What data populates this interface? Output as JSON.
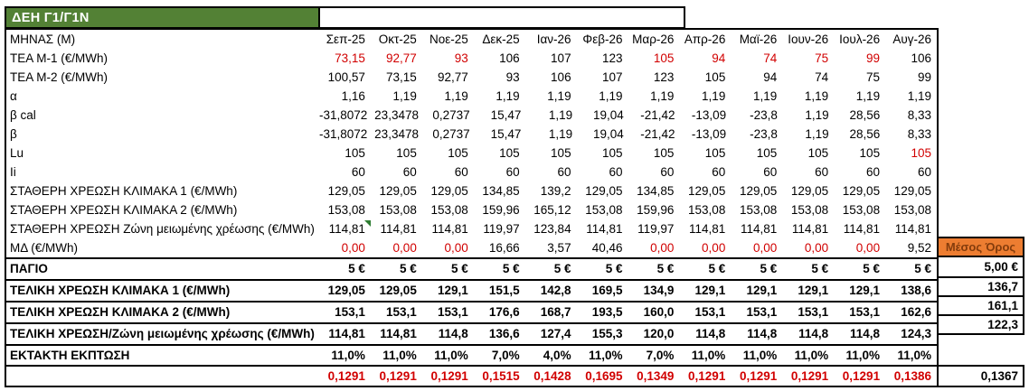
{
  "title": "ΔΕΗ Γ1/Γ1Ν",
  "colors": {
    "title_bg": "#538135",
    "title_text": "#ffffff",
    "avg_header_bg": "#ED7D31",
    "avg_header_text": "#843C0C",
    "red_value": "#d10000"
  },
  "months": [
    "Σεπ-25",
    "Οκτ-25",
    "Νοε-25",
    "Δεκ-25",
    "Ιαν-26",
    "Φεβ-26",
    "Μαρ-26",
    "Απρ-26",
    "Μαϊ-26",
    "Ιουν-26",
    "Ιουλ-26",
    "Αυγ-26"
  ],
  "rows": [
    {
      "name": "months-header",
      "label": "ΜΗΝΑΣ (Μ)",
      "values": [
        "Σεπ-25",
        "Οκτ-25",
        "Νοε-25",
        "Δεκ-25",
        "Ιαν-26",
        "Φεβ-26",
        "Μαρ-26",
        "Απρ-26",
        "Μαϊ-26",
        "Ιουν-26",
        "Ιουλ-26",
        "Αυγ-26"
      ]
    },
    {
      "name": "tea-m1",
      "label": "TEA M-1 (€/MWh)",
      "values": [
        "73,15",
        "92,77",
        "93",
        "106",
        "107",
        "123",
        "105",
        "94",
        "74",
        "75",
        "99",
        "106"
      ],
      "red": [
        0,
        1,
        2,
        6,
        7,
        8,
        9,
        10
      ]
    },
    {
      "name": "tea-m2",
      "label": "TEA M-2 (€/MWh)",
      "values": [
        "100,57",
        "73,15",
        "92,77",
        "93",
        "106",
        "107",
        "123",
        "105",
        "94",
        "74",
        "75",
        "99"
      ]
    },
    {
      "name": "alpha",
      "label": "α",
      "values": [
        "1,16",
        "1,19",
        "1,19",
        "1,19",
        "1,19",
        "1,19",
        "1,19",
        "1,19",
        "1,19",
        "1,19",
        "1,19",
        "1,19"
      ]
    },
    {
      "name": "beta-cal",
      "label": "β cal",
      "values": [
        "-31,8072",
        "23,3478",
        "0,2737",
        "15,47",
        "1,19",
        "19,04",
        "-21,42",
        "-13,09",
        "-23,8",
        "1,19",
        "28,56",
        "8,33"
      ]
    },
    {
      "name": "beta",
      "label": "β",
      "values": [
        "-31,8072",
        "23,3478",
        "0,2737",
        "15,47",
        "1,19",
        "19,04",
        "-21,42",
        "-13,09",
        "-23,8",
        "1,19",
        "28,56",
        "8,33"
      ]
    },
    {
      "name": "lu",
      "label": "Lu",
      "values": [
        "105",
        "105",
        "105",
        "105",
        "105",
        "105",
        "105",
        "105",
        "105",
        "105",
        "105",
        "105"
      ],
      "red": [
        11
      ]
    },
    {
      "name": "ii",
      "label": "Ii",
      "values": [
        "60",
        "60",
        "60",
        "60",
        "60",
        "60",
        "60",
        "60",
        "60",
        "60",
        "60",
        "60"
      ]
    },
    {
      "name": "fixed-charge-scale-1",
      "label": "ΣΤΑΘΕΡΗ ΧΡΕΩΣΗ ΚΛΙΜΑΚΑ 1 (€/MWh)",
      "values": [
        "129,05",
        "129,05",
        "129,05",
        "134,85",
        "139,2",
        "129,05",
        "134,85",
        "129,05",
        "129,05",
        "129,05",
        "129,05",
        "129,05"
      ]
    },
    {
      "name": "fixed-charge-scale-2",
      "label": "ΣΤΑΘΕΡΗ ΧΡΕΩΣΗ ΚΛΙΜΑΚΑ 2 (€/MWh)",
      "values": [
        "153,08",
        "153,08",
        "153,08",
        "159,96",
        "165,12",
        "153,08",
        "159,96",
        "153,08",
        "153,08",
        "153,08",
        "153,08",
        "153,08"
      ]
    },
    {
      "name": "fixed-charge-reduced-zone",
      "label": "ΣΤΑΘΕΡΗ ΧΡΕΩΣΗ Ζώνη μειωμένης χρέωσης (€/MWh)",
      "values": [
        "114,81",
        "114,81",
        "114,81",
        "119,97",
        "123,84",
        "114,81",
        "119,97",
        "114,81",
        "114,81",
        "114,81",
        "114,81",
        "114,81"
      ],
      "marker": 0
    },
    {
      "name": "md",
      "label": "ΜΔ (€/MWh)",
      "values": [
        "0,00",
        "0,00",
        "0,00",
        "16,66",
        "3,57",
        "40,46",
        "0,00",
        "0,00",
        "0,00",
        "0,00",
        "0,00",
        "9,52"
      ],
      "red": [
        0,
        1,
        2,
        6,
        7,
        8,
        9,
        10
      ]
    },
    {
      "name": "pagio",
      "label": "ΠΑΓΙΟ",
      "values": [
        "5 €",
        "5 €",
        "5 €",
        "5 €",
        "5 €",
        "5 €",
        "5 €",
        "5 €",
        "5 €",
        "5 €",
        "5 €",
        "5 €"
      ],
      "bold": true,
      "sep": true,
      "tall": true
    },
    {
      "name": "final-charge-scale-1",
      "label": "ΤΕΛΙΚΗ ΧΡΕΩΣΗ ΚΛΙΜΑΚΑ 1 (€/MWh)",
      "values": [
        "129,05",
        "129,05",
        "129,1",
        "151,5",
        "142,8",
        "169,5",
        "134,9",
        "129,1",
        "129,1",
        "129,1",
        "129,1",
        "138,6"
      ],
      "bold": true,
      "sep": true,
      "tall": true
    },
    {
      "name": "final-charge-scale-2",
      "label": "ΤΕΛΙΚΗ ΧΡΕΩΣΗ ΚΛΙΜΑΚΑ 2 (€/MWh)",
      "values": [
        "153,1",
        "153,1",
        "153,1",
        "176,6",
        "168,7",
        "193,5",
        "160,0",
        "153,1",
        "153,1",
        "153,1",
        "153,1",
        "162,6"
      ],
      "bold": true,
      "sep": true,
      "tall": true
    },
    {
      "name": "final-charge-reduced-zone",
      "label": "ΤΕΛΙΚΗ ΧΡΕΩΣΗ/Ζώνη μειωμένης χρέωσης (€/MWh)",
      "values": [
        "114,81",
        "114,81",
        "114,8",
        "136,6",
        "127,4",
        "155,3",
        "120,0",
        "114,8",
        "114,8",
        "114,8",
        "114,8",
        "124,3"
      ],
      "bold": true,
      "sep": true,
      "tall": true
    },
    {
      "name": "extraordinary-discount",
      "label": "ΕΚΤΑΚΤΗ ΕΚΠΤΩΣΗ",
      "values": [
        "11,0%",
        "11,0%",
        "11,0%",
        "7,0%",
        "4,0%",
        "11,0%",
        "7,0%",
        "11,0%",
        "11,0%",
        "11,0%",
        "11,0%",
        "11,0%"
      ],
      "bold": true,
      "sep": true,
      "tall": true
    }
  ],
  "bottom_row": {
    "name": "unit-rate",
    "label": "",
    "values": [
      "0,1291",
      "0,1291",
      "0,1291",
      "0,1515",
      "0,1428",
      "0,1695",
      "0,1349",
      "0,1291",
      "0,1291",
      "0,1291",
      "0,1291",
      "0,1386"
    ]
  },
  "averages": {
    "header": "Μέσος Όρος",
    "pagio": "5,00 €",
    "final_scale_1": "136,7",
    "final_scale_2": "161,1",
    "final_reduced_zone": "122,3",
    "unit_rate": "0,1367"
  }
}
